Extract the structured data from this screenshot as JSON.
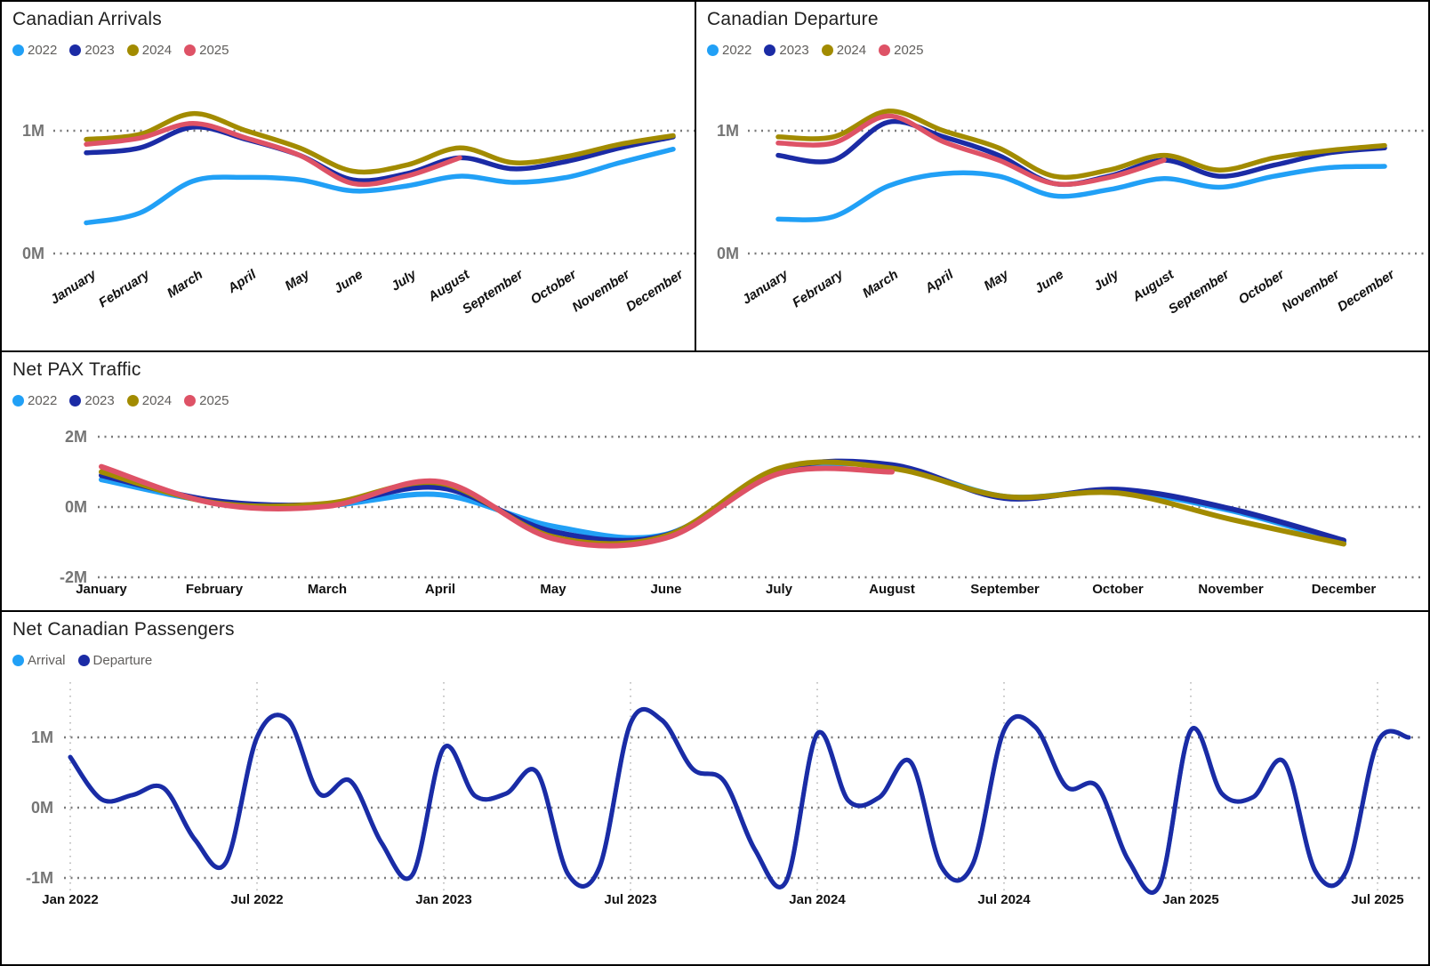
{
  "colors": {
    "y2022": "#21A0F6",
    "y2023": "#1B2BA5",
    "y2024": "#A28B00",
    "y2025": "#DE5266",
    "arrival": "#21A0F6",
    "departure": "#1B2BA5",
    "grid_dots": "#7a7a7a",
    "vgrid_dots": "#b5b5b5",
    "axis_text": "#757575",
    "title_text": "#1f1f1f",
    "legend_text": "#605E5C"
  },
  "chart_data": [
    {
      "id": "arrivals",
      "type": "line",
      "title": "Canadian Arrivals",
      "legend_position": "top",
      "grid": "dotted-horizontal",
      "categories": [
        "January",
        "February",
        "March",
        "April",
        "May",
        "June",
        "July",
        "August",
        "September",
        "October",
        "November",
        "December"
      ],
      "yticks": [
        {
          "label": "1M",
          "value": 1
        },
        {
          "label": "0M",
          "value": 0
        }
      ],
      "ylim": [
        -0.1,
        1.3
      ],
      "unit": "millions of passengers",
      "series": [
        {
          "name": "2022",
          "color": "#21A0F6",
          "values": [
            0.25,
            0.33,
            0.59,
            0.62,
            0.6,
            0.51,
            0.55,
            0.63,
            0.58,
            0.62,
            0.74,
            0.85
          ]
        },
        {
          "name": "2023",
          "color": "#1B2BA5",
          "values": [
            0.82,
            0.86,
            1.03,
            0.93,
            0.8,
            0.6,
            0.65,
            0.78,
            0.69,
            0.75,
            0.86,
            0.95
          ]
        },
        {
          "name": "2024",
          "color": "#A28B00",
          "values": [
            0.93,
            0.97,
            1.14,
            1.0,
            0.86,
            0.67,
            0.72,
            0.86,
            0.74,
            0.79,
            0.89,
            0.96
          ]
        },
        {
          "name": "2025",
          "color": "#DE5266",
          "values": [
            0.89,
            0.94,
            1.06,
            0.94,
            0.8,
            0.57,
            0.63,
            0.78
          ]
        }
      ]
    },
    {
      "id": "departures",
      "type": "line",
      "title": "Canadian Departure",
      "legend_position": "top",
      "grid": "dotted-horizontal",
      "categories": [
        "January",
        "February",
        "March",
        "April",
        "May",
        "June",
        "July",
        "August",
        "September",
        "October",
        "November",
        "December"
      ],
      "yticks": [
        {
          "label": "1M",
          "value": 1
        },
        {
          "label": "0M",
          "value": 0
        }
      ],
      "ylim": [
        -0.1,
        1.3
      ],
      "unit": "millions of passengers",
      "series": [
        {
          "name": "2022",
          "color": "#21A0F6",
          "values": [
            0.28,
            0.3,
            0.55,
            0.65,
            0.63,
            0.47,
            0.52,
            0.61,
            0.54,
            0.63,
            0.7,
            0.71
          ]
        },
        {
          "name": "2023",
          "color": "#1B2BA5",
          "values": [
            0.8,
            0.76,
            1.07,
            0.95,
            0.8,
            0.57,
            0.63,
            0.76,
            0.63,
            0.72,
            0.82,
            0.86
          ]
        },
        {
          "name": "2024",
          "color": "#A28B00",
          "values": [
            0.95,
            0.95,
            1.16,
            1.0,
            0.86,
            0.63,
            0.68,
            0.8,
            0.68,
            0.78,
            0.84,
            0.88
          ]
        },
        {
          "name": "2025",
          "color": "#DE5266",
          "values": [
            0.9,
            0.9,
            1.12,
            0.91,
            0.76,
            0.57,
            0.62,
            0.76
          ]
        }
      ]
    },
    {
      "id": "net_pax",
      "type": "line",
      "title": "Net PAX Traffic",
      "legend_position": "top",
      "grid": "dotted-horizontal",
      "categories": [
        "January",
        "February",
        "March",
        "April",
        "May",
        "June",
        "July",
        "August",
        "September",
        "October",
        "November",
        "December"
      ],
      "yticks": [
        {
          "label": "2M",
          "value": 2
        },
        {
          "label": "0M",
          "value": 0
        },
        {
          "label": "-2M",
          "value": -2
        }
      ],
      "ylim": [
        -2.3,
        2.3
      ],
      "unit": "millions of passengers",
      "series": [
        {
          "name": "2022",
          "color": "#21A0F6",
          "values": [
            0.78,
            0.15,
            0.05,
            0.35,
            -0.55,
            -0.78,
            1.0,
            1.15,
            0.3,
            0.45,
            -0.1,
            -1.0
          ]
        },
        {
          "name": "2023",
          "color": "#1B2BA5",
          "values": [
            0.9,
            0.18,
            0.08,
            0.55,
            -0.7,
            -0.8,
            1.05,
            1.2,
            0.25,
            0.5,
            -0.05,
            -0.95
          ]
        },
        {
          "name": "2024",
          "color": "#A28B00",
          "values": [
            1.0,
            0.12,
            0.1,
            0.68,
            -0.85,
            -0.82,
            1.1,
            1.1,
            0.3,
            0.4,
            -0.35,
            -1.05
          ]
        },
        {
          "name": "2025",
          "color": "#DE5266",
          "values": [
            1.15,
            0.1,
            0.02,
            0.72,
            -0.9,
            -0.88,
            0.95,
            1.0
          ]
        }
      ]
    },
    {
      "id": "net_canadian",
      "type": "line",
      "title": "Net Canadian Passengers",
      "legend_position": "top",
      "grid": "dotted-horizontal-and-vertical",
      "x_axis_labels": [
        "Jan 2022",
        "Jul 2022",
        "Jan 2023",
        "Jul 2023",
        "Jan 2024",
        "Jul 2024",
        "Jan 2025",
        "Jul 2025"
      ],
      "x_label_every_n_points": 6,
      "x_range": "monthly, Jan 2022 - Aug 2025",
      "yticks": [
        {
          "label": "1M",
          "value": 1
        },
        {
          "label": "0M",
          "value": 0
        },
        {
          "label": "-1M",
          "value": -1
        }
      ],
      "ylim": [
        -1.45,
        1.45
      ],
      "unit": "millions of passengers",
      "series": [
        {
          "name": "Arrival",
          "color": "#21A0F6",
          "values": [
            0.72,
            0.12,
            0.18,
            0.28,
            -0.45,
            -0.78,
            1.0,
            1.25,
            0.2,
            0.38,
            -0.5,
            -0.95,
            0.85,
            0.17,
            0.2,
            0.5,
            -0.95,
            -0.85,
            1.2,
            1.25,
            0.55,
            0.38,
            -0.6,
            -1.05,
            1.05,
            0.1,
            0.15,
            0.65,
            -0.85,
            -0.8,
            1.1,
            1.15,
            0.3,
            0.3,
            -0.75,
            -1.1,
            1.1,
            0.2,
            0.15,
            0.65,
            -0.9,
            -0.9,
            0.93,
            1.0
          ]
        },
        {
          "name": "Departure",
          "color": "#1B2BA5",
          "values": [
            0.72,
            0.12,
            0.18,
            0.28,
            -0.45,
            -0.78,
            1.0,
            1.25,
            0.2,
            0.38,
            -0.5,
            -0.95,
            0.85,
            0.17,
            0.2,
            0.5,
            -0.95,
            -0.85,
            1.2,
            1.25,
            0.55,
            0.38,
            -0.6,
            -1.05,
            1.05,
            0.1,
            0.15,
            0.65,
            -0.85,
            -0.8,
            1.1,
            1.15,
            0.3,
            0.3,
            -0.75,
            -1.1,
            1.1,
            0.2,
            0.15,
            0.65,
            -0.9,
            -0.9,
            0.93,
            1.0
          ]
        }
      ],
      "note": "Arrival line is fully covered by the Departure line"
    }
  ]
}
